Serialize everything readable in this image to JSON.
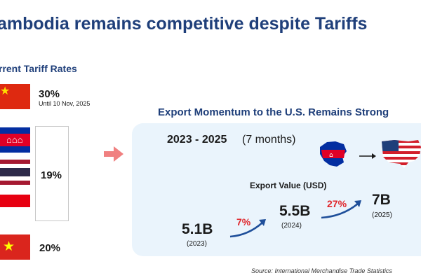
{
  "title": "ambodia remains competitive despite Tariffs",
  "tariffs": {
    "heading": "rrent Tariff Rates",
    "china": {
      "rate": "30%",
      "note": "Until 10 Nov, 2025"
    },
    "group_rate": "19%",
    "vietnam": {
      "rate": "20%"
    }
  },
  "export": {
    "heading": "Export Momentum to the U.S. Remains Strong",
    "period": "2023 - 2025",
    "period_note": "(7 months)",
    "value_label": "Export Value (USD)"
  },
  "chart_data": {
    "type": "line",
    "title": "Export Value (USD)",
    "unit": "USD",
    "x": [
      "2023",
      "2024",
      "2025"
    ],
    "series": [
      {
        "values": [
          5.1,
          5.5,
          7
        ]
      }
    ],
    "labels": [
      "5.1B",
      "5.5B",
      "7B"
    ],
    "x_labels": [
      "(2023)",
      "(2024)",
      "(2025)"
    ],
    "growth": [
      "7%",
      "27%"
    ],
    "colors": {
      "growth": "#e0262b",
      "arrow": "#1f4f9a"
    }
  },
  "source": "Source: International Merchandise Trade Statistics"
}
